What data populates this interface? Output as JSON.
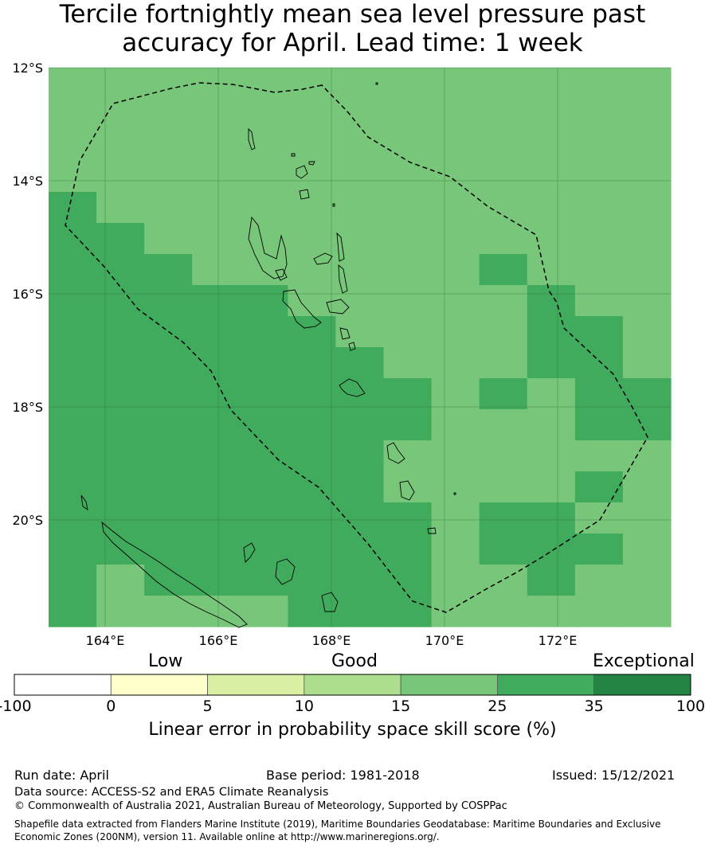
{
  "title": "Tercile fortnightly mean sea level pressure past\naccuracy for April. Lead time: 1 week",
  "map": {
    "lat_labels": [
      "12°S",
      "14°S",
      "16°S",
      "18°S",
      "20°S"
    ],
    "lon_labels": [
      "164°E",
      "166°E",
      "168°E",
      "170°E",
      "172°E"
    ],
    "colors": {
      "low": "#ffffff",
      "c0_5": "#ffffcc",
      "c5_10": "#d9f0a3",
      "c10_15": "#addd8e",
      "c15_25": "#78c679",
      "c25_35": "#41ab5d",
      "c35_100": "#238443"
    }
  },
  "legend": {
    "category_labels": {
      "low": "Low",
      "good": "Good",
      "exceptional": "Exceptional"
    },
    "ticks": [
      "-100",
      "0",
      "5",
      "10",
      "15",
      "25",
      "35",
      "100"
    ],
    "bin_colors": [
      "#ffffff",
      "#ffffcc",
      "#d9f0a3",
      "#addd8e",
      "#78c679",
      "#41ab5d",
      "#238443"
    ],
    "title": "Linear error in probability space skill score (%)"
  },
  "footer": {
    "run_date": "Run date: April",
    "base_period": "Base period: 1981-2018",
    "issued": "Issued: 15/12/2021",
    "data_source": "Data source: ACCESS-S2 and ERA5 Climate Reanalysis",
    "copyright": "© Commonwealth of Australia 2021, Australian Bureau of Meteorology, Supported by COSPPac",
    "shapefile_credit": "Shapefile data extracted from Flanders Marine Institute (2019), Maritime Boundaries Geodatabase: Maritime Boundaries and Exclusive Economic Zones (200NM), version 11. Available online at http://www.marineregions.org/."
  }
}
